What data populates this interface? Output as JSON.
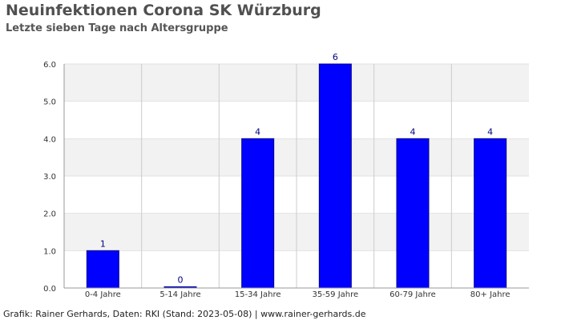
{
  "header": {
    "title": "Neuinfektionen Corona SK Würzburg",
    "subtitle": "Letzte sieben Tage nach Altersgruppe"
  },
  "footer": {
    "text": "Grafik: Rainer Gerhards, Daten: RKI (Stand: 2023-05-08) | www.rainer-gerhards.de"
  },
  "chart_data": {
    "type": "bar",
    "title": "Neuinfektionen Corona SK Würzburg",
    "subtitle": "Letzte sieben Tage nach Altersgruppe",
    "xlabel": "",
    "ylabel": "",
    "categories": [
      "0-4 Jahre",
      "5-14 Jahre",
      "15-34 Jahre",
      "35-59 Jahre",
      "60-79 Jahre",
      "80+ Jahre"
    ],
    "values": [
      1,
      0,
      4,
      6,
      4,
      4
    ],
    "ylim": [
      0,
      6
    ],
    "yticks": [
      "0.0",
      "1.0",
      "2.0",
      "3.0",
      "4.0",
      "5.0",
      "6.0"
    ],
    "grid": true,
    "legend": "none",
    "colors": {
      "bar_fill": "#0000ff",
      "bar_stroke": "#00008b",
      "value_label": "#000080",
      "band_alternate": "#f2f2f2",
      "grid": "#cccccc",
      "axis": "#999999"
    }
  }
}
